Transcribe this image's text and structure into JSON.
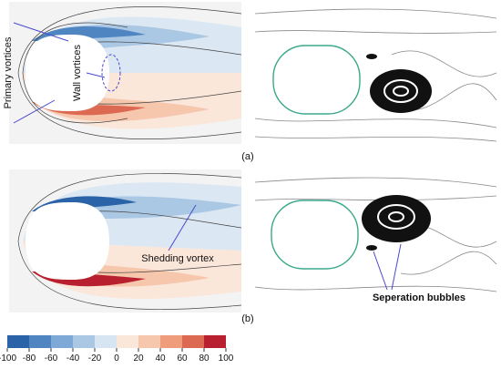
{
  "panel_a": {
    "label": "(a)",
    "annotations": [
      "Primary vortices",
      "Wall vortices"
    ]
  },
  "panel_b": {
    "label": "(b)",
    "annotations": [
      "Shedding vortex",
      "Seperation bubbles"
    ]
  },
  "colorbar": {
    "ticks": [
      -100,
      -80,
      -60,
      -40,
      -20,
      0,
      20,
      40,
      60,
      80,
      100
    ],
    "colors": [
      "#2b63a8",
      "#4f86c2",
      "#7ea9d6",
      "#aac7e4",
      "#d7e5f2",
      "#fbe6da",
      "#f6c6ad",
      "#ee9c7c",
      "#dc6a52",
      "#b8202f"
    ]
  }
}
